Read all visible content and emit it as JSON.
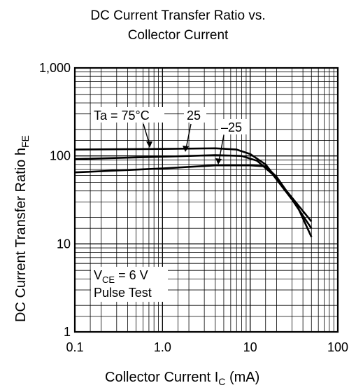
{
  "chart_data": {
    "type": "line",
    "title_line1": "DC Current Transfer Ratio vs.",
    "title_line2": "Collector Current",
    "xlabel_main": "Collector Current  I",
    "xlabel_sub": "C",
    "xlabel_unit": "  (mA)",
    "ylabel_main": "DC Current Transfer Ratio  h",
    "ylabel_sub": "FE",
    "x_scale": "log",
    "y_scale": "log",
    "xlim": [
      0.1,
      100
    ],
    "ylim": [
      1,
      1000
    ],
    "x_ticks": [
      0.1,
      1.0,
      10,
      100
    ],
    "x_tick_labels": [
      "0.1",
      "1.0",
      "10",
      "100"
    ],
    "y_ticks": [
      1,
      10,
      100,
      1000
    ],
    "y_tick_labels": [
      "1",
      "10",
      "100",
      "1,000"
    ],
    "grid": true,
    "series": [
      {
        "name": "Ta = 75°C",
        "points": [
          [
            0.1,
            118
          ],
          [
            1,
            120
          ],
          [
            4,
            122
          ],
          [
            7,
            118
          ],
          [
            10,
            105
          ],
          [
            15,
            80
          ],
          [
            25,
            42
          ],
          [
            50,
            18
          ]
        ]
      },
      {
        "name": "25",
        "points": [
          [
            0.1,
            92
          ],
          [
            1,
            98
          ],
          [
            4,
            102
          ],
          [
            8,
            100
          ],
          [
            12,
            88
          ],
          [
            18,
            62
          ],
          [
            30,
            32
          ],
          [
            50,
            15
          ]
        ]
      },
      {
        "name": "–25",
        "points": [
          [
            0.1,
            65
          ],
          [
            1,
            72
          ],
          [
            4,
            78
          ],
          [
            10,
            78
          ],
          [
            15,
            76
          ],
          [
            20,
            58
          ],
          [
            35,
            26
          ],
          [
            50,
            12
          ]
        ]
      }
    ],
    "annotations": {
      "legend_t75": "Ta = 75°C",
      "legend_25": "25",
      "legend_m25": "–25",
      "vce_main": "V",
      "vce_sub": "CE",
      "vce_value": " = 6 V",
      "pulse_test": "Pulse Test"
    }
  }
}
